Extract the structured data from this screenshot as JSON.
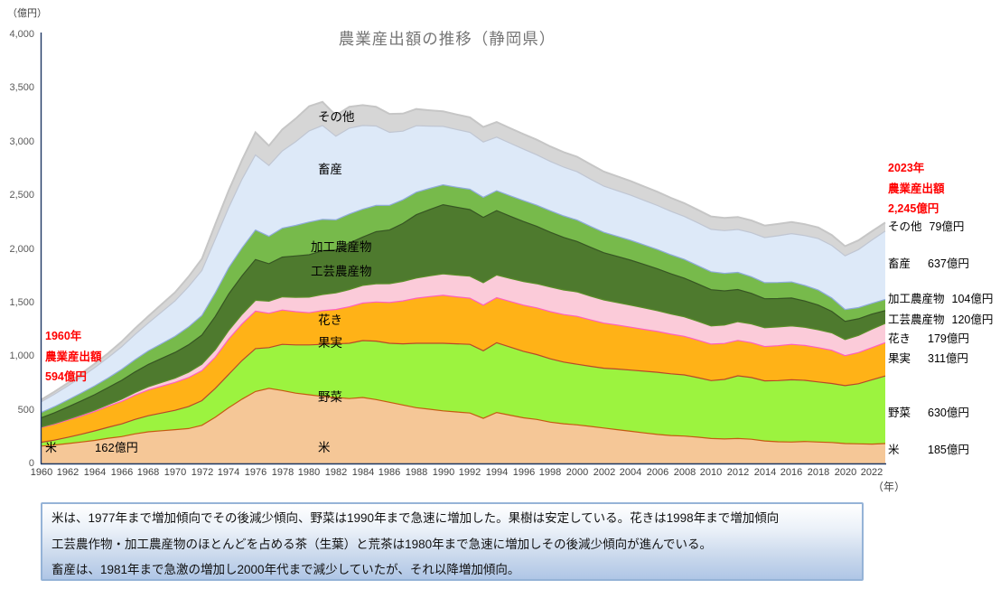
{
  "title": "農業産出額の推移（静岡県）",
  "chart_data": {
    "type": "area",
    "stacked": true,
    "title": "農業産出額の推移（静岡県）",
    "unit_y": "（億円）",
    "unit_x": "（年）",
    "ylim": [
      0,
      4000
    ],
    "ytick_step": 500,
    "ytick_labels": [
      "0",
      "500",
      "1,000",
      "1,500",
      "2,000",
      "2,500",
      "3,000",
      "3,500",
      "4,000"
    ],
    "xtick_labels": [
      "1960",
      "1962",
      "1964",
      "1966",
      "1968",
      "1970",
      "1972",
      "1974",
      "1976",
      "1978",
      "1980",
      "1982",
      "1984",
      "1986",
      "1988",
      "1990",
      "1992",
      "1994",
      "1996",
      "1998",
      "2000",
      "2002",
      "2004",
      "2006",
      "2008",
      "2010",
      "2012",
      "2014",
      "2016",
      "2018",
      "2020",
      "2022"
    ],
    "years": [
      1960,
      1961,
      1962,
      1963,
      1964,
      1965,
      1966,
      1967,
      1968,
      1969,
      1970,
      1971,
      1972,
      1973,
      1974,
      1975,
      1976,
      1977,
      1978,
      1979,
      1980,
      1981,
      1982,
      1983,
      1984,
      1985,
      1986,
      1987,
      1988,
      1989,
      1990,
      1991,
      1992,
      1993,
      1994,
      1995,
      1996,
      1997,
      1998,
      1999,
      2000,
      2001,
      2002,
      2003,
      2004,
      2005,
      2006,
      2007,
      2008,
      2009,
      2010,
      2011,
      2012,
      2013,
      2014,
      2015,
      2016,
      2017,
      2018,
      2019,
      2020,
      2021,
      2022,
      2023
    ],
    "series": [
      {
        "key": "rice",
        "name": "米",
        "fill": "#F5C797",
        "edge": "#C55A11",
        "values": [
          162,
          172,
          185,
          200,
          215,
          235,
          250,
          275,
          295,
          305,
          315,
          325,
          355,
          430,
          520,
          600,
          670,
          700,
          680,
          655,
          640,
          625,
          615,
          605,
          615,
          595,
          570,
          545,
          520,
          505,
          490,
          480,
          470,
          420,
          475,
          450,
          425,
          410,
          385,
          370,
          360,
          345,
          330,
          315,
          300,
          285,
          270,
          260,
          255,
          245,
          232,
          228,
          232,
          226,
          210,
          202,
          200,
          205,
          200,
          195,
          185,
          183,
          180,
          185
        ]
      },
      {
        "key": "vegetables",
        "name": "野菜",
        "fill": "#9CF33F",
        "edge": "#B7472A",
        "values": [
          35,
          45,
          58,
          72,
          88,
          102,
          118,
          135,
          150,
          165,
          180,
          205,
          230,
          270,
          310,
          360,
          400,
          380,
          430,
          450,
          465,
          485,
          500,
          515,
          530,
          545,
          550,
          570,
          600,
          615,
          630,
          635,
          640,
          630,
          650,
          635,
          620,
          605,
          590,
          575,
          565,
          560,
          558,
          565,
          570,
          575,
          580,
          575,
          570,
          555,
          540,
          555,
          585,
          575,
          560,
          570,
          580,
          570,
          560,
          550,
          540,
          560,
          600,
          630
        ]
      },
      {
        "key": "fruits",
        "name": "果実",
        "fill": "#FFB217",
        "edge": "#FF5FBF",
        "values": [
          137,
          148,
          160,
          170,
          180,
          195,
          210,
          225,
          240,
          250,
          260,
          270,
          280,
          290,
          330,
          340,
          350,
          320,
          320,
          310,
          300,
          315,
          320,
          340,
          350,
          365,
          380,
          400,
          420,
          435,
          447,
          438,
          430,
          425,
          420,
          425,
          430,
          435,
          440,
          443,
          446,
          433,
          420,
          410,
          400,
          390,
          380,
          370,
          360,
          350,
          340,
          335,
          330,
          325,
          320,
          325,
          330,
          325,
          320,
          310,
          280,
          290,
          300,
          311
        ]
      },
      {
        "key": "flowers",
        "name": "花き",
        "fill": "#FBCBD9",
        "edge": "#5A8F29",
        "values": [
          5,
          7,
          9,
          11,
          13,
          15,
          20,
          25,
          30,
          35,
          40,
          50,
          60,
          70,
          80,
          90,
          101,
          112,
          123,
          134,
          145,
          150,
          155,
          160,
          165,
          170,
          176,
          182,
          188,
          194,
          200,
          203,
          206,
          209,
          212,
          215,
          220,
          225,
          230,
          229,
          228,
          222,
          216,
          210,
          205,
          200,
          194,
          188,
          182,
          176,
          170,
          172,
          174,
          175,
          175,
          175,
          172,
          169,
          166,
          163,
          150,
          160,
          172,
          179
        ]
      },
      {
        "key": "craft-crops",
        "name": "工芸農産物",
        "fill": "#4E7A2E",
        "edge": "#375623",
        "values": [
          85,
          100,
          115,
          130,
          145,
          160,
          176,
          192,
          208,
          224,
          240,
          256,
          272,
          310,
          340,
          360,
          380,
          350,
          370,
          385,
          395,
          408,
          400,
          435,
          450,
          485,
          500,
          540,
          590,
          618,
          645,
          632,
          620,
          610,
          600,
          580,
          560,
          535,
          510,
          490,
          470,
          455,
          440,
          430,
          420,
          405,
          390,
          375,
          360,
          348,
          337,
          318,
          300,
          285,
          270,
          265,
          260,
          245,
          230,
          200,
          170,
          155,
          140,
          120
        ]
      },
      {
        "key": "processed-crops",
        "name": "加工農産物",
        "fill": "#77BA4B",
        "edge": "#8FAADC",
        "values": [
          50,
          58,
          66,
          74,
          82,
          90,
          102,
          114,
          126,
          138,
          150,
          166,
          182,
          220,
          245,
          260,
          275,
          255,
          270,
          285,
          305,
          292,
          280,
          270,
          260,
          245,
          230,
          220,
          210,
          197,
          185,
          187,
          190,
          187,
          185,
          190,
          195,
          197,
          200,
          200,
          200,
          195,
          190,
          187,
          185,
          182,
          180,
          177,
          175,
          171,
          168,
          164,
          160,
          155,
          150,
          150,
          150,
          145,
          140,
          125,
          110,
          105,
          100,
          104
        ]
      },
      {
        "key": "livestock",
        "name": "畜産",
        "fill": "#DDE9F8",
        "edge": "#C0C6D2",
        "values": [
          100,
          115,
          130,
          150,
          170,
          190,
          210,
          235,
          260,
          295,
          330,
          375,
          420,
          500,
          560,
          640,
          700,
          660,
          720,
          780,
          850,
          875,
          780,
          800,
          780,
          740,
          680,
          640,
          620,
          580,
          545,
          538,
          530,
          515,
          500,
          490,
          480,
          470,
          460,
          455,
          450,
          440,
          430,
          425,
          420,
          415,
          410,
          405,
          400,
          398,
          395,
          398,
          400,
          410,
          420,
          435,
          450,
          465,
          480,
          490,
          500,
          540,
          590,
          637
        ]
      },
      {
        "key": "other",
        "name": "その他",
        "fill": "#D6D6D6",
        "edge": "#C6C6C6",
        "values": [
          20,
          24,
          28,
          32,
          36,
          40,
          48,
          56,
          64,
          72,
          80,
          94,
          108,
          140,
          160,
          180,
          210,
          185,
          200,
          215,
          230,
          220,
          195,
          200,
          190,
          180,
          172,
          164,
          156,
          148,
          140,
          140,
          140,
          140,
          140,
          140,
          140,
          140,
          140,
          140,
          140,
          138,
          136,
          134,
          132,
          130,
          128,
          126,
          124,
          122,
          120,
          118,
          116,
          114,
          112,
          110,
          108,
          106,
          104,
          97,
          90,
          86,
          82,
          79
        ]
      }
    ],
    "annotations": {
      "start": {
        "lines": [
          "1960年",
          "農業産出額",
          "594億円"
        ]
      },
      "end": {
        "lines": [
          "2023年",
          "農業産出額",
          "2,245億円"
        ]
      },
      "rice_start": {
        "label": "米",
        "value": "162億円"
      }
    },
    "right_values": [
      {
        "key": "other",
        "label": "その他",
        "value": "79億円"
      },
      {
        "key": "livestock",
        "label": "畜産",
        "value": "637億円"
      },
      {
        "key": "processed-crops",
        "label": "加工農産物",
        "value": "104億円"
      },
      {
        "key": "craft-crops",
        "label": "工芸農産物",
        "value": "120億円"
      },
      {
        "key": "flowers",
        "label": "花き",
        "value": "179億円"
      },
      {
        "key": "fruits",
        "label": "果実",
        "value": "311億円"
      },
      {
        "key": "vegetables",
        "label": "野菜",
        "value": "630億円"
      },
      {
        "key": "rice",
        "label": "米",
        "value": "185億円"
      }
    ]
  },
  "note_box": {
    "lines": [
      "米は、1977年まで増加傾向でその後減少傾向、野菜は1990年まで急速に増加した。果樹は安定している。花きは1998年まで増加傾向",
      "工芸農作物・加工農産物のほとんどを占める茶（生葉）と荒茶は1980年まで急速に増加しその後減少傾向が進んでいる。",
      "畜産は、1981年まで急激の増加し2000年代まで減少していたが、それ以降増加傾向。"
    ]
  }
}
